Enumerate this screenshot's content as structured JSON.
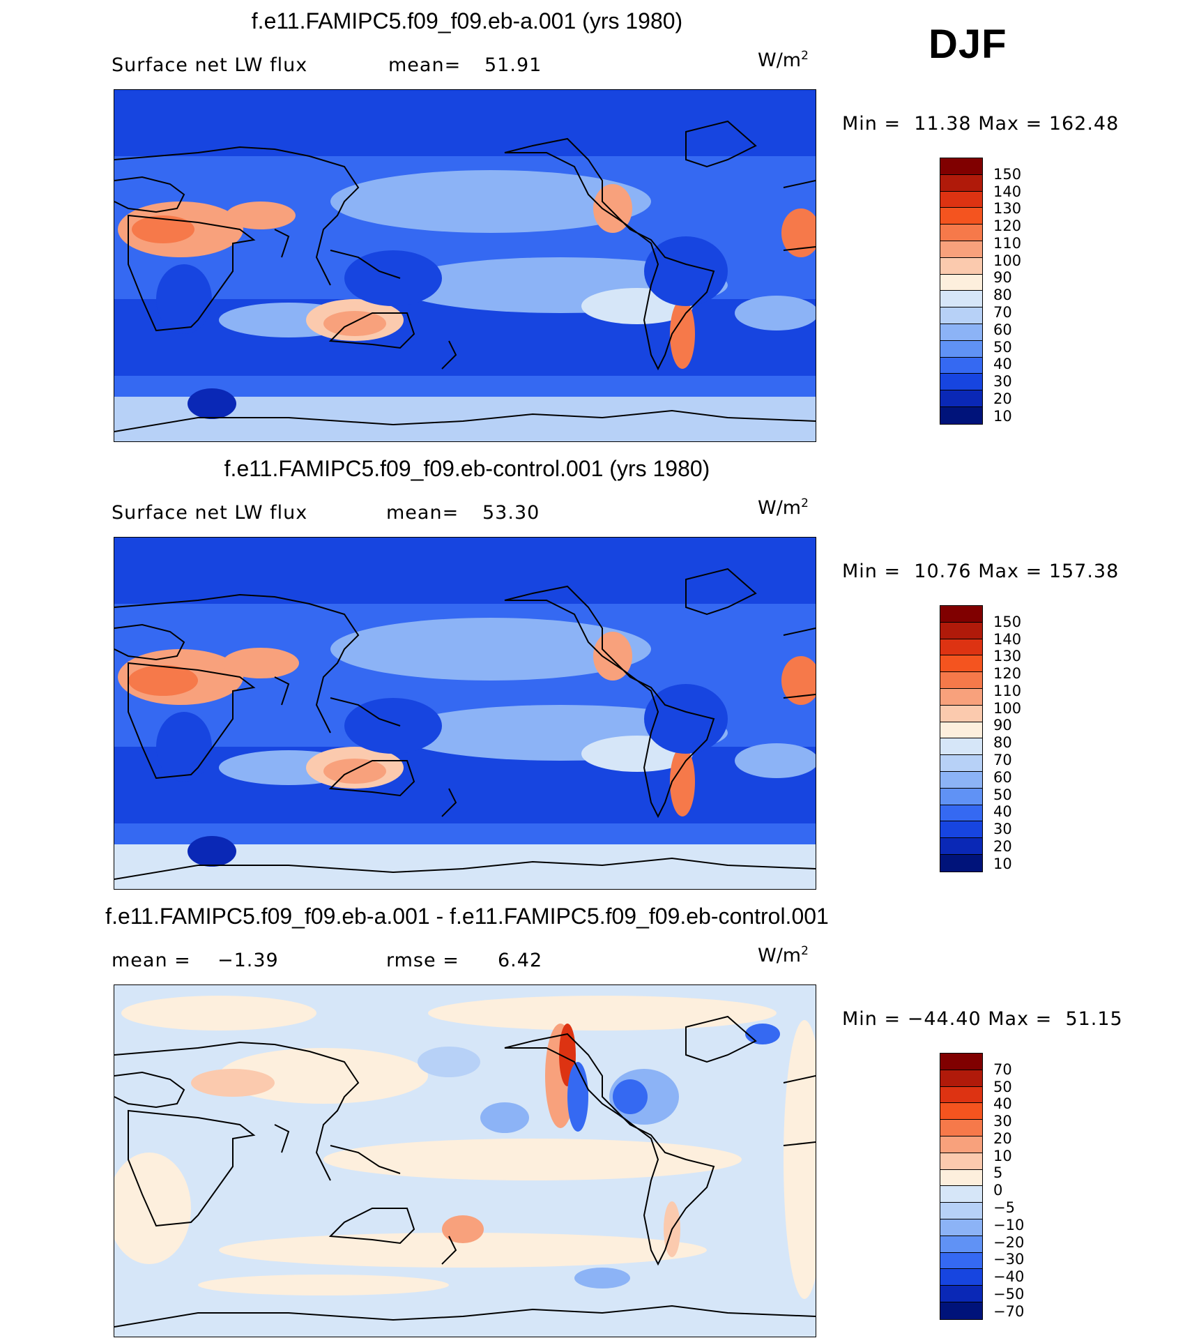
{
  "season": "DJF",
  "panels": [
    {
      "title": "f.e11.FAMIPC5.f09_f09.eb-a.001 (yrs 1980)",
      "variable": "Surface net LW flux",
      "stat_label": "mean=",
      "stat_value": "51.91",
      "units": "W/m",
      "units_exp": "2",
      "min_label": "Min =",
      "min_value": "11.38",
      "max_label": "Max =",
      "max_value": "162.48",
      "colorbar": {
        "labels": [
          "150",
          "140",
          "130",
          "120",
          "110",
          "100",
          "90",
          "80",
          "70",
          "60",
          "50",
          "40",
          "30",
          "20",
          "10"
        ],
        "colors": [
          "#800000",
          "#b01a0a",
          "#dd3312",
          "#f4541f",
          "#f6794a",
          "#f8a17c",
          "#fbcaae",
          "#fdefdd",
          "#d6e6f8",
          "#b7d1f7",
          "#8cb3f6",
          "#6092f5",
          "#3569f2",
          "#1745e0",
          "#0a28b6",
          "#00137a"
        ]
      }
    },
    {
      "title": "f.e11.FAMIPC5.f09_f09.eb-control.001 (yrs 1980)",
      "variable": "Surface net LW flux",
      "stat_label": "mean=",
      "stat_value": "53.30",
      "units": "W/m",
      "units_exp": "2",
      "min_label": "Min =",
      "min_value": "10.76",
      "max_label": "Max =",
      "max_value": "157.38",
      "colorbar": {
        "labels": [
          "150",
          "140",
          "130",
          "120",
          "110",
          "100",
          "90",
          "80",
          "70",
          "60",
          "50",
          "40",
          "30",
          "20",
          "10"
        ],
        "colors": [
          "#800000",
          "#b01a0a",
          "#dd3312",
          "#f4541f",
          "#f6794a",
          "#f8a17c",
          "#fbcaae",
          "#fdefdd",
          "#d6e6f8",
          "#b7d1f7",
          "#8cb3f6",
          "#6092f5",
          "#3569f2",
          "#1745e0",
          "#0a28b6",
          "#00137a"
        ]
      }
    },
    {
      "title": "f.e11.FAMIPC5.f09_f09.eb-a.001 - f.e11.FAMIPC5.f09_f09.eb-control.001",
      "variable": "mean =",
      "variable_value": "−1.39",
      "stat_label": "rmse =",
      "stat_value": "6.42",
      "units": "W/m",
      "units_exp": "2",
      "min_label": "Min =",
      "min_value": "−44.40",
      "max_label": "Max =",
      "max_value": "51.15",
      "colorbar": {
        "labels": [
          "70",
          "50",
          "40",
          "30",
          "20",
          "10",
          "5",
          "0",
          "−5",
          "−10",
          "−20",
          "−30",
          "−40",
          "−50",
          "−70"
        ],
        "colors": [
          "#800000",
          "#b01a0a",
          "#dd3312",
          "#f4541f",
          "#f6794a",
          "#f8a17c",
          "#fbcaae",
          "#fdefdd",
          "#d6e6f8",
          "#b7d1f7",
          "#8cb3f6",
          "#6092f5",
          "#3569f2",
          "#1745e0",
          "#0a28b6",
          "#00137a"
        ]
      }
    }
  ]
}
